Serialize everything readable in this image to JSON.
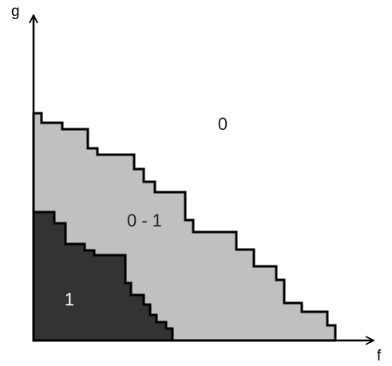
{
  "axes": {
    "x_label": "f",
    "y_label": "g"
  },
  "regions": {
    "outer": {
      "label": "0",
      "fill": "#ffffff",
      "label_color": "#222222"
    },
    "middle": {
      "label": "0 - 1",
      "fill": "#c0c0c0",
      "label_color": "#222222"
    },
    "inner": {
      "label": "1",
      "fill": "#333333",
      "label_color": "#ffffff"
    }
  },
  "colors": {
    "stroke": "#000000"
  }
}
